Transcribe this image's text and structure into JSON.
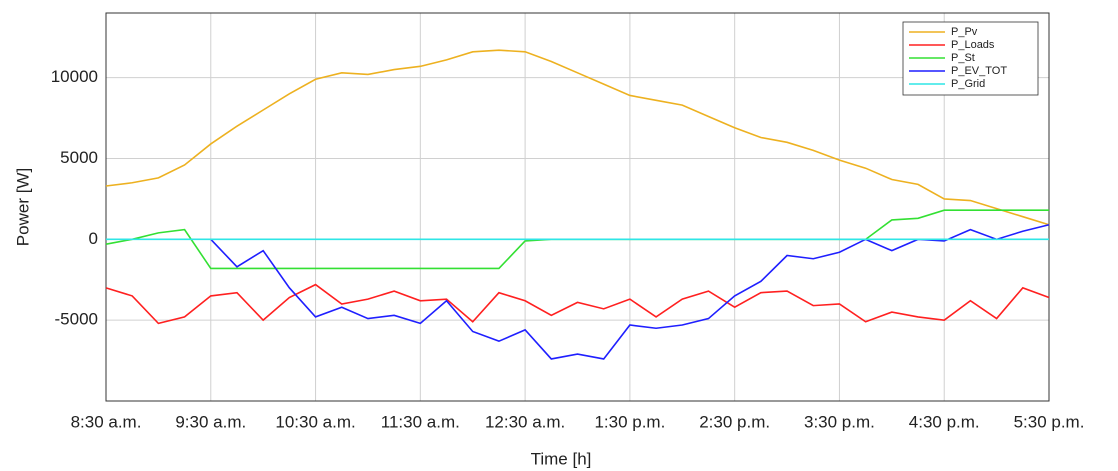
{
  "chart_data": {
    "type": "line",
    "x": [
      8.5,
      8.75,
      9,
      9.25,
      9.5,
      9.75,
      10,
      10.25,
      10.5,
      10.75,
      11,
      11.25,
      11.5,
      11.75,
      12,
      12.25,
      12.5,
      12.75,
      13,
      13.25,
      13.5,
      13.75,
      14,
      14.25,
      14.5,
      14.75,
      15,
      15.25,
      15.5,
      15.75,
      16,
      16.25,
      16.5,
      16.75,
      17,
      17.25,
      17.5
    ],
    "xlim": [
      8.5,
      17.5
    ],
    "xticks": [
      {
        "value": 8.5,
        "label": "8:30 a.m."
      },
      {
        "value": 9.5,
        "label": "9:30 a.m."
      },
      {
        "value": 10.5,
        "label": "10:30 a.m."
      },
      {
        "value": 11.5,
        "label": "11:30 a.m."
      },
      {
        "value": 12.5,
        "label": "12:30 a.m."
      },
      {
        "value": 13.5,
        "label": "1:30 p.m."
      },
      {
        "value": 14.5,
        "label": "2:30 p.m."
      },
      {
        "value": 15.5,
        "label": "3:30 p.m."
      },
      {
        "value": 16.5,
        "label": "4:30 p.m."
      },
      {
        "value": 17.5,
        "label": "5:30 p.m."
      }
    ],
    "ylim": [
      -10000,
      14000
    ],
    "yticks": [
      -5000,
      0,
      5000,
      10000
    ],
    "xlabel": "Time [h]",
    "ylabel": "Power [W]",
    "grid": true,
    "legend": "top-right",
    "series": [
      {
        "name": "P_Pv",
        "color": "#EDB120",
        "values": [
          3300,
          3500,
          3800,
          4600,
          5900,
          7000,
          8000,
          9000,
          9900,
          10300,
          10200,
          10500,
          10700,
          11100,
          11600,
          11700,
          11600,
          11000,
          10300,
          9600,
          8900,
          8600,
          8300,
          7600,
          6900,
          6300,
          6000,
          5500,
          4900,
          4400,
          3700,
          3400,
          2500,
          2400,
          1900,
          1400,
          900
        ]
      },
      {
        "name": "P_Loads",
        "color": "#FF2020",
        "values": [
          -3000,
          -3500,
          -5200,
          -4800,
          -3500,
          -3300,
          -5000,
          -3600,
          -2800,
          -4000,
          -3700,
          -3200,
          -3800,
          -3700,
          -5100,
          -3300,
          -3800,
          -4700,
          -3900,
          -4300,
          -3700,
          -4800,
          -3700,
          -3200,
          -4200,
          -3300,
          -3200,
          -4100,
          -4000,
          -5100,
          -4500,
          -4800,
          -5000,
          -3800,
          -4900,
          -3000,
          -3600
        ]
      },
      {
        "name": "P_St",
        "color": "#33E033",
        "values": [
          -300,
          0,
          400,
          600,
          -1800,
          -1800,
          -1800,
          -1800,
          -1800,
          -1800,
          -1800,
          -1800,
          -1800,
          -1800,
          -1800,
          -1800,
          -100,
          0,
          0,
          0,
          0,
          0,
          0,
          0,
          0,
          0,
          0,
          0,
          0,
          0,
          1200,
          1300,
          1800,
          1800,
          1800,
          1800,
          1800
        ]
      },
      {
        "name": "P_EV_TOT",
        "color": "#1F1FFF",
        "values": [
          null,
          null,
          null,
          null,
          0,
          -1700,
          -700,
          -3000,
          -4800,
          -4200,
          -4900,
          -4700,
          -5200,
          -3800,
          -5700,
          -6300,
          -5600,
          -7400,
          -7100,
          -7400,
          -5300,
          -5500,
          -5300,
          -4900,
          -3500,
          -2600,
          -1000,
          -1200,
          -800,
          0,
          -700,
          0,
          -100,
          600,
          0,
          500,
          900
        ]
      },
      {
        "name": "P_Grid",
        "color": "#2EE6E6",
        "values": [
          0,
          0,
          0,
          0,
          0,
          0,
          0,
          0,
          0,
          0,
          0,
          0,
          0,
          0,
          0,
          0,
          0,
          0,
          0,
          0,
          0,
          0,
          0,
          0,
          0,
          0,
          0,
          0,
          0,
          0,
          0,
          0,
          0,
          0,
          0,
          0,
          0
        ]
      }
    ]
  }
}
